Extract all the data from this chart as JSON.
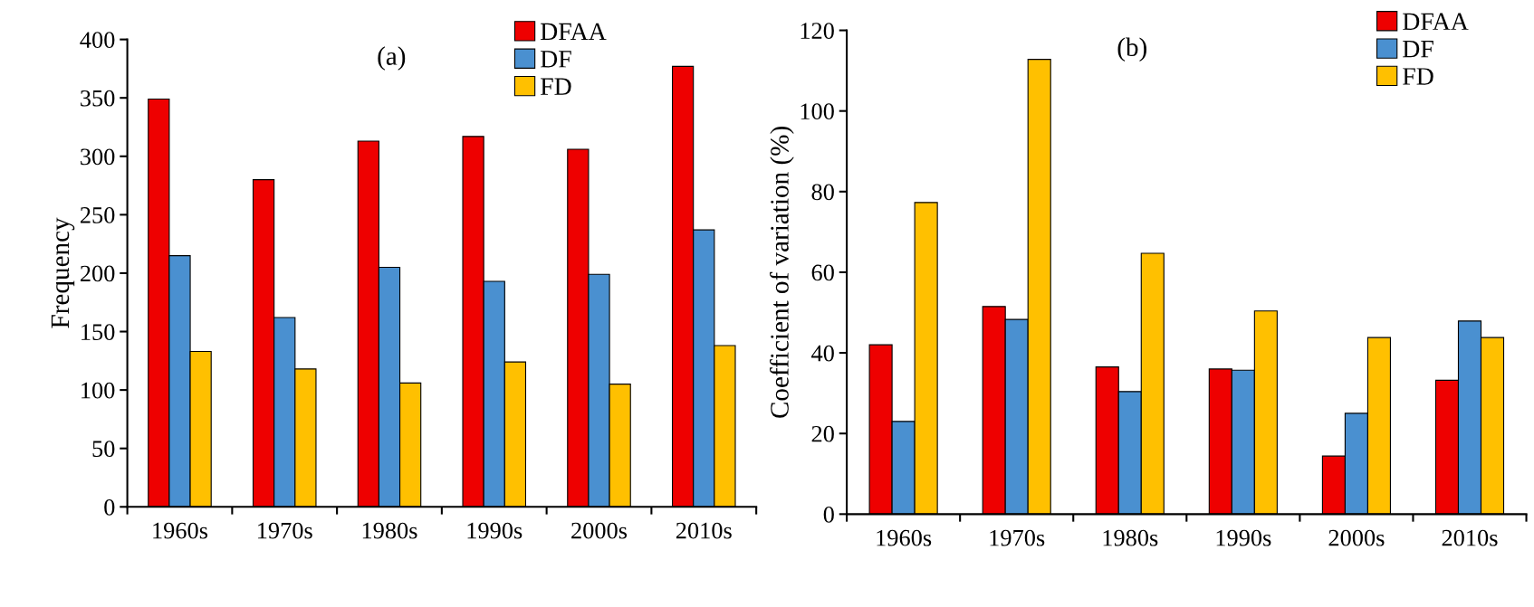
{
  "chart_data": [
    {
      "type": "bar",
      "title": "(a)",
      "ylabel": "Frequency",
      "categories": [
        "1960s",
        "1970s",
        "1980s",
        "1990s",
        "2000s",
        "2010s"
      ],
      "series": [
        {
          "name": "DFAA",
          "color": "#ee0000",
          "values": [
            349,
            280,
            313,
            317,
            306,
            377
          ]
        },
        {
          "name": "DF",
          "color": "#4a90d0",
          "values": [
            215,
            162,
            205,
            193,
            199,
            237
          ]
        },
        {
          "name": "FD",
          "color": "#ffc000",
          "values": [
            133,
            118,
            106,
            124,
            105,
            138
          ]
        }
      ],
      "ylim": [
        0,
        400
      ],
      "yticks": [
        0,
        50,
        100,
        150,
        200,
        250,
        300,
        350,
        400
      ],
      "grid": false,
      "legend": "top"
    },
    {
      "type": "bar",
      "title": "(b)",
      "ylabel": "Coefficient of variation (%)",
      "categories": [
        "1960s",
        "1970s",
        "1980s",
        "1990s",
        "2000s",
        "2010s"
      ],
      "series": [
        {
          "name": "DFAA",
          "color": "#ee0000",
          "values": [
            42,
            51.5,
            36.5,
            36,
            14.4,
            33.2
          ]
        },
        {
          "name": "DF",
          "color": "#4a90d0",
          "values": [
            23,
            48.3,
            30.4,
            35.7,
            25,
            47.9
          ]
        },
        {
          "name": "FD",
          "color": "#ffc000",
          "values": [
            77.3,
            112.8,
            64.7,
            50.4,
            43.8,
            43.8
          ]
        }
      ],
      "ylim": [
        0,
        120
      ],
      "yticks": [
        0,
        20,
        40,
        60,
        80,
        100,
        120
      ],
      "grid": false,
      "legend": "top right"
    }
  ]
}
